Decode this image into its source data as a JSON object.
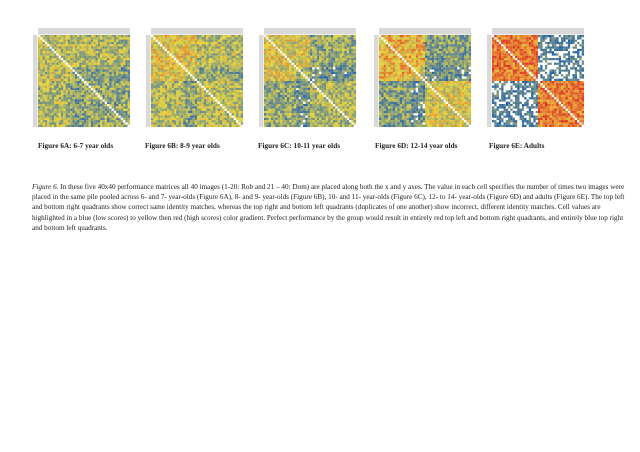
{
  "figures": [
    {
      "label": "Figure 6A: 6-7 year olds"
    },
    {
      "label": "Figure 6B: 8-9 year olds"
    },
    {
      "label": "Figure 6C: 10-11 year olds"
    },
    {
      "label": "Figure 6D: 12-14 year olds"
    },
    {
      "label": "Figure 6E: Adults"
    }
  ],
  "caption": {
    "lead": "Figure 6",
    "text": ". In these five 40x40 performance matrices all 40 images (1-20: Rob and 21 – 40: Dom) are placed along both the x and y axes. The value in each cell specifies the number of times two images were placed in the same pile pooled across 6- and 7- year-olds (Figure 6A), 8- and 9- year-olds (Figure 6B), 10- and 11- year-olds (Figure 6C), 12- to 14- year-olds (Figure 6D) and adults (Figure 6E). The top left and bottom right quadrants show correct same identity matches, whereas the top right and bottom left quadrants (duplicates of one another) show incorrect, different identity matches. Cell values are highlighted in a blue (low scores) to yellow then red (high scores) color gradient. Perfect performance by the group would result in entirely red top left and bottom right quadrants, and entirely blue top right and bottom left quadrants."
  },
  "colors": {
    "low": "#1f5fb0",
    "mid": "#e8d63a",
    "high": "#e03020"
  }
}
